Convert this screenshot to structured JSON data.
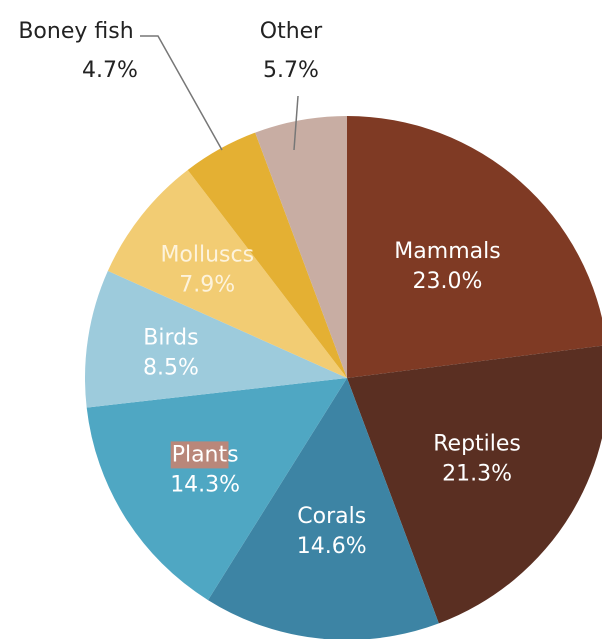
{
  "chart_data": {
    "type": "pie",
    "slices": [
      {
        "label": "Mammals",
        "value": 23.0,
        "value_label": "23.0%",
        "color": "#7f3a24"
      },
      {
        "label": "Reptiles",
        "value": 21.3,
        "value_label": "21.3%",
        "color": "#5a2f22"
      },
      {
        "label": "Corals",
        "value": 14.6,
        "value_label": "14.6%",
        "color": "#3d84a4"
      },
      {
        "label": "Plants",
        "value": 14.3,
        "value_label": "14.3%",
        "color": "#4fa7c3"
      },
      {
        "label": "Birds",
        "value": 8.5,
        "value_label": "8.5%",
        "color": "#9dcbdc"
      },
      {
        "label": "Molluscs",
        "value": 7.9,
        "value_label": "7.9%",
        "color": "#f2cc73"
      },
      {
        "label": "Boney fish",
        "value": 4.7,
        "value_label": "4.7%",
        "color": "#e4b033"
      },
      {
        "label": "Other",
        "value": 5.7,
        "value_label": "5.7%",
        "color": "#c8ada3"
      }
    ],
    "label_placement": {
      "Boney fish": "outside",
      "Other": "outside"
    },
    "highlight": {
      "label": "Plants",
      "highlighted_text": "Plant",
      "color": "#b9877a"
    }
  }
}
